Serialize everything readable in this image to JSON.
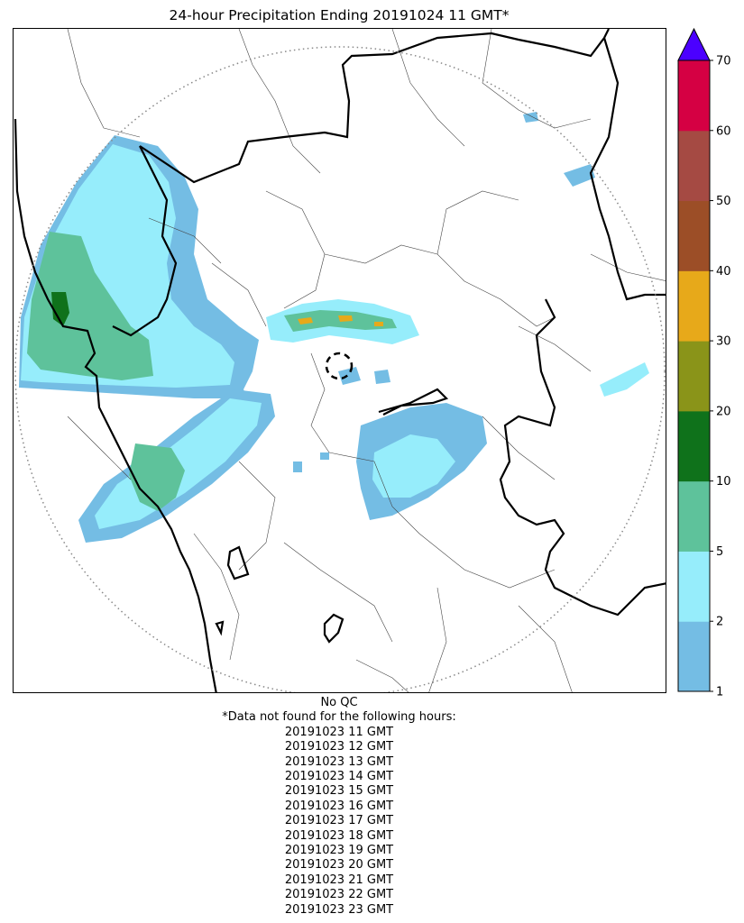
{
  "title": "24-hour Precipitation Ending 20191024 11 GMT*",
  "qc_note": "No QC",
  "missing_header": "*Data not found for the following hours:",
  "missing_hours": [
    "20191023 11 GMT",
    "20191023 12 GMT",
    "20191023 13 GMT",
    "20191023 14 GMT",
    "20191023 15 GMT",
    "20191023 16 GMT",
    "20191023 17 GMT",
    "20191023 18 GMT",
    "20191023 19 GMT",
    "20191023 20 GMT",
    "20191023 21 GMT",
    "20191023 22 GMT",
    "20191023 23 GMT"
  ],
  "colorbar": {
    "ticks": [
      "1",
      "2",
      "5",
      "10",
      "20",
      "30",
      "40",
      "50",
      "60",
      "70"
    ],
    "bins": [
      {
        "from": 1,
        "to": 2,
        "color": "#74bde4"
      },
      {
        "from": 2,
        "to": 5,
        "color": "#96edfb"
      },
      {
        "from": 5,
        "to": 10,
        "color": "#5ec29b"
      },
      {
        "from": 10,
        "to": 20,
        "color": "#0f721b"
      },
      {
        "from": 20,
        "to": 30,
        "color": "#8a9419"
      },
      {
        "from": 30,
        "to": 40,
        "color": "#e7a91a"
      },
      {
        "from": 40,
        "to": 50,
        "color": "#9c4e27"
      },
      {
        "from": 50,
        "to": 60,
        "color": "#a54a43"
      },
      {
        "from": 60,
        "to": 70,
        "color": "#d50043"
      }
    ],
    "extend_color": "#4b00ff"
  }
}
